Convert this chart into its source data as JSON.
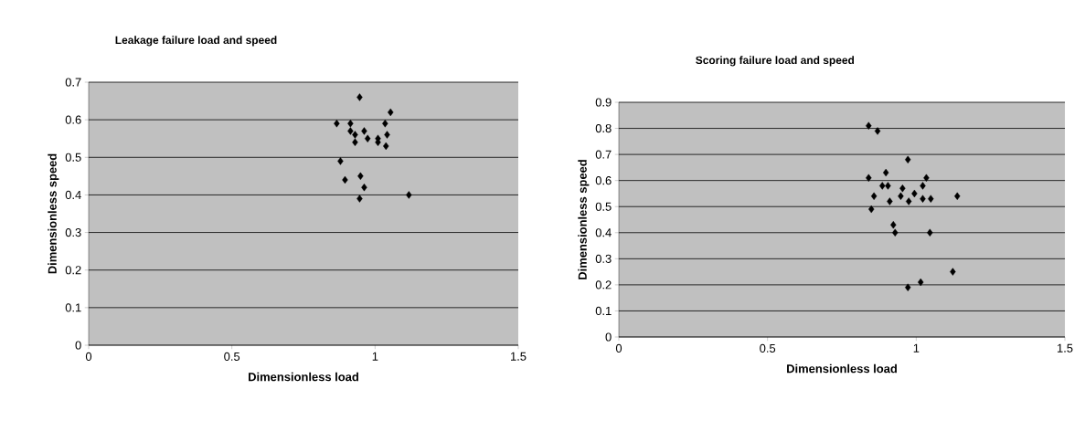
{
  "chart_data": [
    {
      "type": "scatter",
      "title": "Leakage failure load and speed",
      "xlabel": "Dimensionless load",
      "ylabel": "Dimensionless speed",
      "color": "#000000",
      "marker": "diamond",
      "grid": "y",
      "xlim": [
        0,
        1.5
      ],
      "ylim": [
        0,
        0.7
      ],
      "xticks": [
        0,
        0.5,
        1,
        1.5
      ],
      "yticks": [
        0,
        0.1,
        0.2,
        0.3,
        0.4,
        0.5,
        0.6,
        0.7
      ],
      "x": [
        0.946,
        1.054,
        0.866,
        0.914,
        0.962,
        1.035,
        0.914,
        0.93,
        0.974,
        1.042,
        1.01,
        0.93,
        1.01,
        1.038,
        0.879,
        0.895,
        0.949,
        0.962,
        0.946,
        1.118
      ],
      "values": [
        0.66,
        0.62,
        0.59,
        0.59,
        0.57,
        0.59,
        0.57,
        0.56,
        0.55,
        0.56,
        0.55,
        0.54,
        0.54,
        0.53,
        0.49,
        0.44,
        0.45,
        0.42,
        0.39,
        0.4
      ]
    },
    {
      "type": "scatter",
      "title": "Scoring failure load and speed",
      "xlabel": "Dimensionless load",
      "ylabel": "Dimensionless speed",
      "color": "#000000",
      "marker": "diamond",
      "grid": "y",
      "xlim": [
        0,
        1.5
      ],
      "ylim": [
        0,
        0.9
      ],
      "xticks": [
        0,
        0.5,
        1,
        1.5
      ],
      "yticks": [
        0,
        0.1,
        0.2,
        0.3,
        0.4,
        0.5,
        0.6,
        0.7,
        0.8,
        0.9
      ],
      "x": [
        0.84,
        0.87,
        0.972,
        0.84,
        0.898,
        1.034,
        0.886,
        0.905,
        1.022,
        0.858,
        0.954,
        0.994,
        0.911,
        0.948,
        0.975,
        1.022,
        1.049,
        1.138,
        0.849,
        0.923,
        0.929,
        1.046,
        1.123,
        1.015,
        0.972
      ],
      "values": [
        0.81,
        0.79,
        0.68,
        0.61,
        0.63,
        0.61,
        0.58,
        0.58,
        0.58,
        0.54,
        0.57,
        0.55,
        0.52,
        0.54,
        0.52,
        0.53,
        0.53,
        0.54,
        0.49,
        0.43,
        0.4,
        0.4,
        0.25,
        0.21,
        0.19
      ]
    }
  ]
}
